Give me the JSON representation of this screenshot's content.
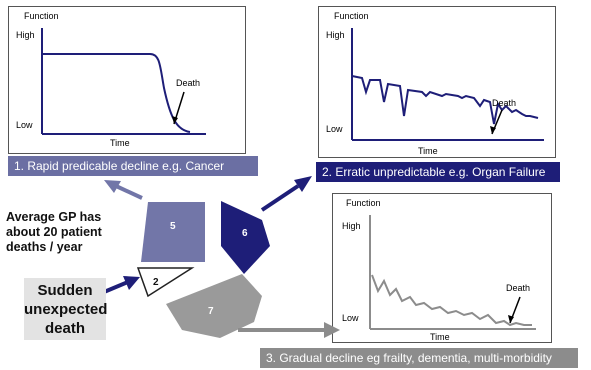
{
  "graphs": [
    {
      "y_label": "Function",
      "high": "High",
      "low": "Low",
      "x_label": "Time",
      "death": "Death"
    },
    {
      "y_label": "Function",
      "high": "High",
      "low": "Low",
      "x_label": "Time",
      "death": "Death"
    },
    {
      "y_label": "Function",
      "high": "High",
      "low": "Low",
      "x_label": "Time",
      "death": "Death"
    }
  ],
  "trajectories": [
    {
      "label": "1. Rapid predicable decline e.g. Cancer",
      "color": "#6b6fa3"
    },
    {
      "label": "2. Erratic unpredictable e.g. Organ Failure",
      "color": "#1e1e78"
    },
    {
      "label": "3. Gradual decline  eg frailty, dementia, multi-morbidity",
      "color": "#8c8c8c"
    }
  ],
  "pie": {
    "slices": [
      {
        "value": "5",
        "color": "#7276a8"
      },
      {
        "value": "6",
        "color": "#1e1e78"
      },
      {
        "value": "7",
        "color": "#9a9a9a"
      },
      {
        "value": "2",
        "color": "#ffffff"
      }
    ]
  },
  "average_note": "Average GP has about 20 patient deaths / year",
  "sudden_death": "Sudden unexpected death"
}
